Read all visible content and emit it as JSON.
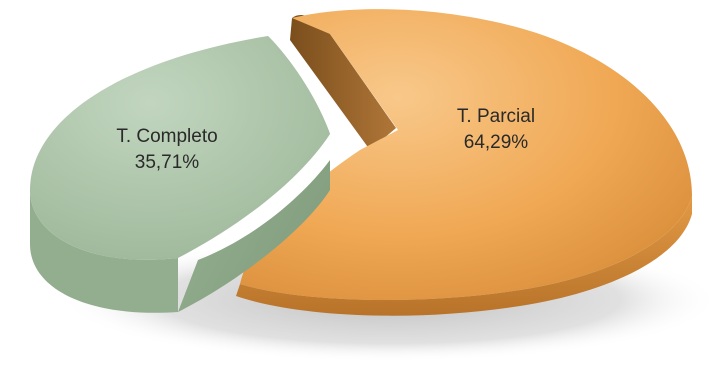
{
  "chart_data": {
    "type": "pie",
    "title": "",
    "categories": [
      "T. Completo",
      "T. Parcial"
    ],
    "values": [
      35.71,
      64.29
    ],
    "value_labels": [
      "35,71%",
      "64,29%"
    ],
    "colors": [
      "#A9C2A6",
      "#F2AE5E"
    ],
    "style": "3d-exploded"
  }
}
